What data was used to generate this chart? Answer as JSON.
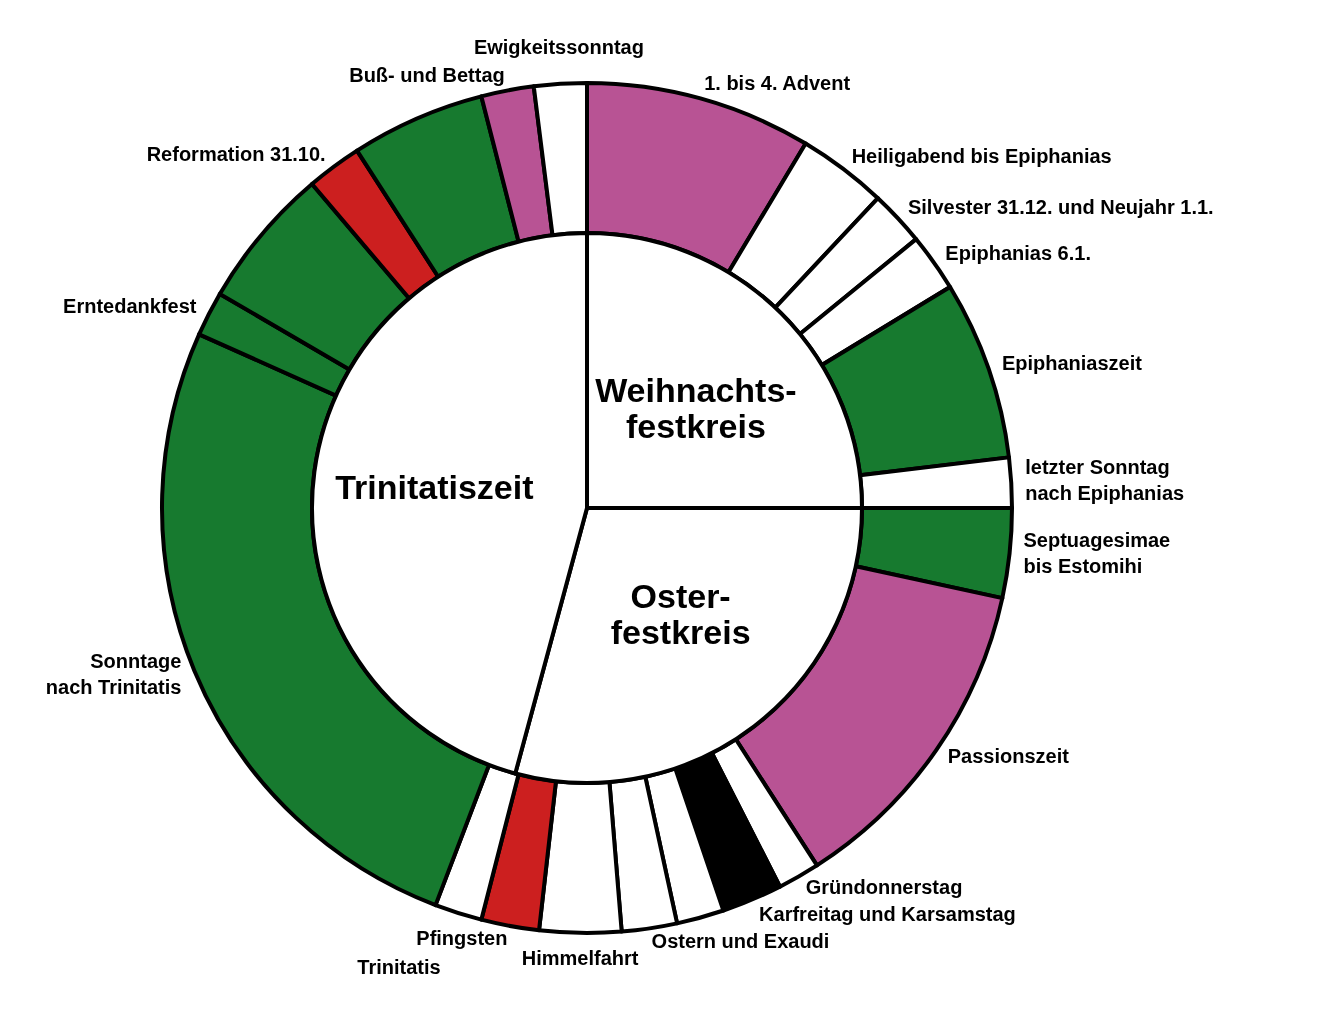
{
  "chart_data": [
    {
      "type": "pie",
      "categories": [
        "Weihnachts-\nfestkreis",
        "Oster-\nfestkreis",
        "Trinitatiszeit"
      ],
      "values": [
        25,
        29.2,
        45.8
      ],
      "colors": [
        "#ffffff",
        "#ffffff",
        "#ffffff"
      ]
    },
    {
      "type": "donut",
      "categories": [
        "1. bis 4. Advent",
        "Heiligabend bis Epiphanias",
        "Silvester 31.12. und Neujahr 1.1.",
        "Epiphanias 6.1.",
        "Epiphaniaszeit",
        "letzter Sonntag\nnach Epiphanias",
        "Septuagesimae\nbis Estomihi",
        "Passionszeit",
        "Gründonnerstag",
        "Karfreitag und Karsamstag",
        null,
        "Ostern und Exaudi",
        "Himmelfahrt",
        "Pfingsten",
        "Trinitatis",
        "Sonntage\nnach Trinitatis",
        "Erntedankfest",
        null,
        "Reformation 31.10.",
        null,
        "Buß- und Bettag",
        "Ewigkeitssonntag"
      ],
      "values": [
        8.6,
        3.4,
        2.1,
        2.2,
        6.8,
        1.9,
        3.4,
        12.5,
        1.6,
        2.3,
        1.8,
        2.1,
        3.1,
        2.2,
        1.8,
        25.9,
        1.7,
        5.4,
        2.1,
        5.1,
        2.0,
        2.0
      ],
      "colors": [
        "#b85394",
        "#ffffff",
        "#ffffff",
        "#ffffff",
        "#177a2f",
        "#ffffff",
        "#177a2f",
        "#b85394",
        "#ffffff",
        "#000000",
        "#ffffff",
        "#ffffff",
        "#ffffff",
        "#cc1f1f",
        "#ffffff",
        "#177a2f",
        "#177a2f",
        "#177a2f",
        "#cc1f1f",
        "#177a2f",
        "#b85394",
        "#ffffff"
      ]
    }
  ]
}
